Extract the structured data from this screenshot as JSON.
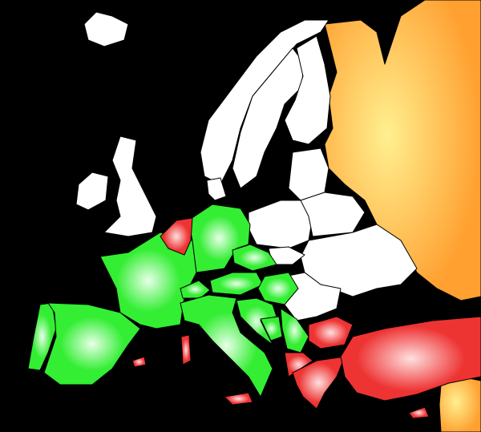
{
  "colors": {
    "background": "#000000",
    "neutral": "#ffffff",
    "green": "#33ee33",
    "green_highlight": "#e8ffe8",
    "red": "#ee3333",
    "red_highlight": "#ffe0e0",
    "orange": "#ffa030",
    "orange_highlight": "#fff090"
  },
  "regions": {
    "green": [
      "portugal",
      "spain",
      "france",
      "switzerland",
      "germany",
      "italy",
      "austria",
      "czechia",
      "slovenia",
      "croatia",
      "bosnia",
      "serbia",
      "hungary",
      "montenegro"
    ],
    "red": [
      "belgium-netherlands",
      "greece",
      "turkey",
      "bulgaria",
      "macedonia",
      "albania",
      "corsica",
      "sardinia",
      "sicily-malta",
      "cyprus",
      "andorra"
    ],
    "orange": [
      "russia"
    ],
    "neutral": [
      "iceland",
      "ireland",
      "uk",
      "norway",
      "sweden",
      "finland",
      "denmark",
      "estonia",
      "latvia",
      "lithuania",
      "poland",
      "belarus",
      "ukraine",
      "slovakia",
      "romania",
      "moldova"
    ]
  }
}
